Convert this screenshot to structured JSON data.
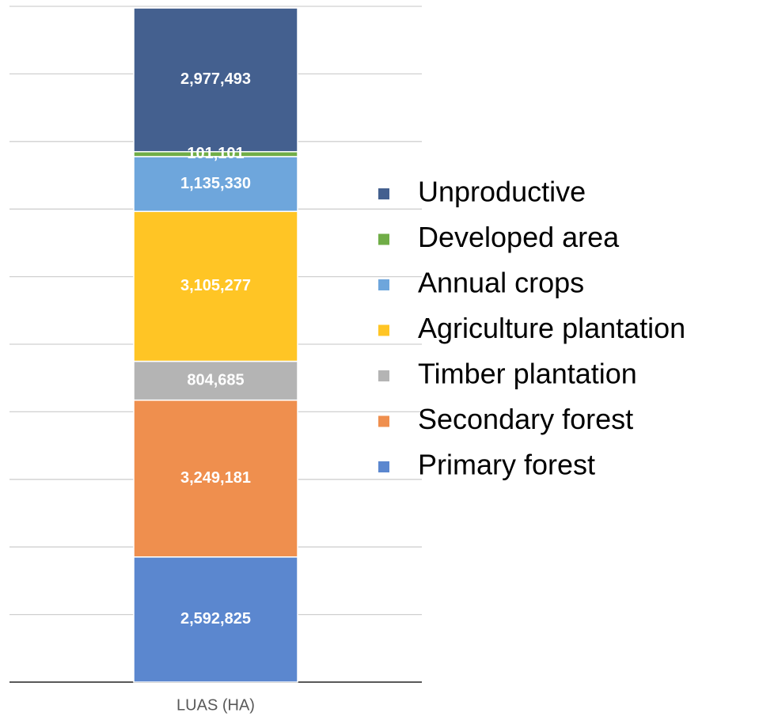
{
  "chart_data": {
    "type": "stacked_bar",
    "categories": [
      "LUAS (HA)"
    ],
    "series": [
      {
        "name": "Primary forest",
        "color": "#5b87cf",
        "values": [
          2592825
        ],
        "value_labels": [
          "2,592,825"
        ]
      },
      {
        "name": "Secondary forest",
        "color": "#ef8f4e",
        "values": [
          3249181
        ],
        "value_labels": [
          "3,249,181"
        ]
      },
      {
        "name": "Timber plantation",
        "color": "#b4b4b4",
        "values": [
          804685
        ],
        "value_labels": [
          "804,685"
        ]
      },
      {
        "name": "Agriculture plantation",
        "color": "#ffc525",
        "values": [
          3105277
        ],
        "value_labels": [
          "3,105,277"
        ]
      },
      {
        "name": "Annual crops",
        "color": "#6ea6dc",
        "values": [
          1135330
        ],
        "value_labels": [
          "1,135,330"
        ]
      },
      {
        "name": "Developed area",
        "color": "#70ad47",
        "values": [
          101101
        ],
        "value_labels": [
          "101,101"
        ]
      },
      {
        "name": "Unproductive",
        "color": "#44608f",
        "values": [
          2977493
        ],
        "value_labels": [
          "2,977,493"
        ]
      }
    ],
    "ylim": [
      0,
      14000000
    ],
    "yticks": [
      0,
      1400000,
      2800000,
      4200000,
      5600000,
      7000000,
      8400000,
      9800000,
      11200000,
      12600000,
      14000000
    ],
    "grid": true,
    "legend": "right"
  }
}
